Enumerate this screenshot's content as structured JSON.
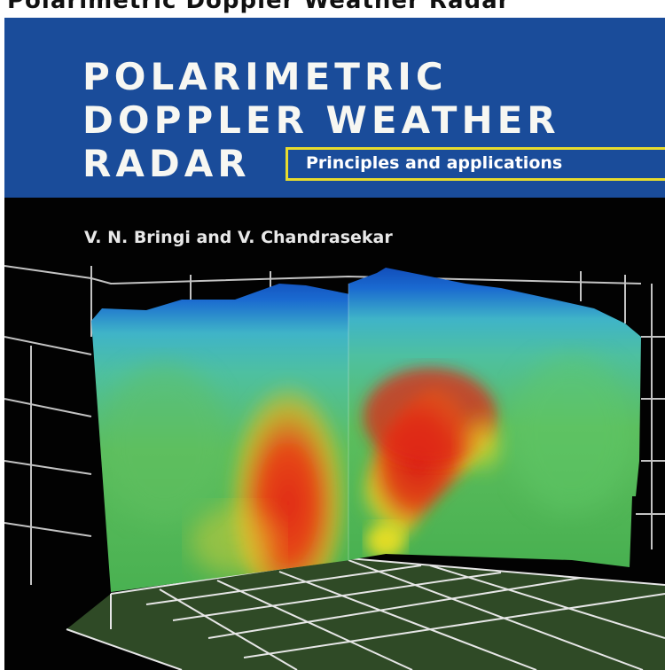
{
  "header_strip": {
    "text": "Polarimetric Doppler Weather Radar"
  },
  "cover": {
    "title_lines": [
      "POLARIMETRIC",
      "DOPPLER WEATHER",
      "RADAR"
    ],
    "subtitle": "Principles and applications",
    "authors": "V. N. Bringi and V. Chandrasekar",
    "colors": {
      "banner": "#1a4c9a",
      "subtitle_border": "#e8dc2e",
      "background": "#020202"
    },
    "illustration": {
      "icon": "radar-3d-volume-plot-icon"
    }
  }
}
